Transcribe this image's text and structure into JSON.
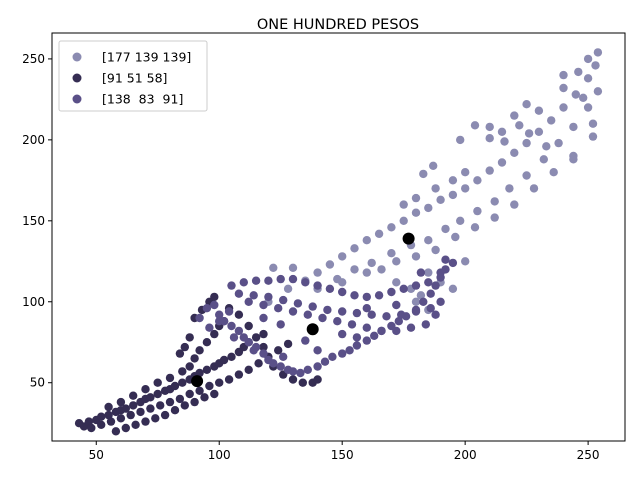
{
  "chart_data": {
    "type": "scatter",
    "title": "ONE HUNDRED PESOS",
    "xlabel": "",
    "ylabel": "",
    "xlim": [
      32,
      265
    ],
    "ylim": [
      14,
      266
    ],
    "xticks": [
      50,
      100,
      150,
      200,
      250
    ],
    "yticks": [
      50,
      100,
      150,
      200,
      250
    ],
    "grid": false,
    "legend_position": "top-left",
    "series": [
      {
        "name": "[177 139 139]",
        "color": "#8b8bb1",
        "centroid": [
          177,
          139
        ],
        "points": [
          [
            120,
            100
          ],
          [
            128,
            108
          ],
          [
            135,
            113
          ],
          [
            140,
            118
          ],
          [
            145,
            123
          ],
          [
            150,
            128
          ],
          [
            155,
            133
          ],
          [
            160,
            138
          ],
          [
            165,
            142
          ],
          [
            170,
            146
          ],
          [
            175,
            150
          ],
          [
            180,
            155
          ],
          [
            185,
            158
          ],
          [
            190,
            163
          ],
          [
            195,
            166
          ],
          [
            200,
            170
          ],
          [
            205,
            175
          ],
          [
            210,
            181
          ],
          [
            215,
            186
          ],
          [
            220,
            192
          ],
          [
            225,
            198
          ],
          [
            230,
            205
          ],
          [
            235,
            212
          ],
          [
            240,
            220
          ],
          [
            245,
            228
          ],
          [
            250,
            238
          ],
          [
            253,
            246
          ],
          [
            254,
            254
          ],
          [
            140,
            108
          ],
          [
            148,
            114
          ],
          [
            155,
            120
          ],
          [
            162,
            124
          ],
          [
            170,
            130
          ],
          [
            178,
            135
          ],
          [
            185,
            138
          ],
          [
            192,
            145
          ],
          [
            198,
            150
          ],
          [
            205,
            156
          ],
          [
            212,
            162
          ],
          [
            218,
            170
          ],
          [
            225,
            178
          ],
          [
            232,
            188
          ],
          [
            238,
            198
          ],
          [
            244,
            208
          ],
          [
            250,
            220
          ],
          [
            254,
            230
          ],
          [
            150,
            112
          ],
          [
            160,
            118
          ],
          [
            172,
            125
          ],
          [
            180,
            128
          ],
          [
            188,
            132
          ],
          [
            196,
            140
          ],
          [
            204,
            146
          ],
          [
            212,
            152
          ],
          [
            220,
            160
          ],
          [
            228,
            170
          ],
          [
            236,
            180
          ],
          [
            244,
            190
          ],
          [
            252,
            202
          ],
          [
            175,
            160
          ],
          [
            180,
            164
          ],
          [
            188,
            170
          ],
          [
            195,
            175
          ],
          [
            200,
            180
          ],
          [
            185,
            118
          ],
          [
            190,
            112
          ],
          [
            195,
            108
          ],
          [
            180,
            100
          ],
          [
            185,
            95
          ],
          [
            200,
            125
          ],
          [
            210,
            201
          ],
          [
            215,
            205
          ],
          [
            220,
            215
          ],
          [
            225,
            222
          ],
          [
            230,
            218
          ],
          [
            240,
            232
          ],
          [
            246,
            242
          ],
          [
            250,
            250
          ],
          [
            183,
            179
          ],
          [
            187,
            184
          ],
          [
            210,
            208
          ],
          [
            204,
            209
          ],
          [
            198,
            200
          ],
          [
            216,
            199
          ],
          [
            222,
            209
          ],
          [
            226,
            204
          ],
          [
            233,
            196
          ],
          [
            244,
            188
          ],
          [
            252,
            210
          ],
          [
            248,
            226
          ],
          [
            240,
            240
          ],
          [
            122,
            121
          ],
          [
            130,
            121
          ],
          [
            166,
            120
          ],
          [
            172,
            112
          ],
          [
            178,
            108
          ],
          [
            182,
            104
          ]
        ]
      },
      {
        "name": "[91 51 58]",
        "color": "#352d53",
        "centroid": [
          91,
          51
        ],
        "points": [
          [
            43,
            25
          ],
          [
            45,
            23
          ],
          [
            47,
            26
          ],
          [
            50,
            27
          ],
          [
            52,
            29
          ],
          [
            55,
            30
          ],
          [
            58,
            32
          ],
          [
            60,
            33
          ],
          [
            62,
            34
          ],
          [
            65,
            36
          ],
          [
            68,
            38
          ],
          [
            70,
            40
          ],
          [
            72,
            41
          ],
          [
            75,
            43
          ],
          [
            78,
            45
          ],
          [
            80,
            46
          ],
          [
            82,
            48
          ],
          [
            85,
            50
          ],
          [
            88,
            52
          ],
          [
            90,
            54
          ],
          [
            92,
            56
          ],
          [
            95,
            58
          ],
          [
            98,
            60
          ],
          [
            100,
            62
          ],
          [
            102,
            64
          ],
          [
            105,
            66
          ],
          [
            108,
            69
          ],
          [
            110,
            72
          ],
          [
            112,
            75
          ],
          [
            115,
            78
          ],
          [
            118,
            80
          ],
          [
            48,
            22
          ],
          [
            52,
            24
          ],
          [
            56,
            26
          ],
          [
            60,
            28
          ],
          [
            64,
            30
          ],
          [
            68,
            32
          ],
          [
            72,
            34
          ],
          [
            76,
            36
          ],
          [
            80,
            38
          ],
          [
            84,
            40
          ],
          [
            88,
            43
          ],
          [
            92,
            45
          ],
          [
            96,
            48
          ],
          [
            100,
            50
          ],
          [
            104,
            52
          ],
          [
            108,
            55
          ],
          [
            112,
            58
          ],
          [
            116,
            62
          ],
          [
            120,
            66
          ],
          [
            124,
            70
          ],
          [
            128,
            74
          ],
          [
            55,
            35
          ],
          [
            60,
            38
          ],
          [
            65,
            42
          ],
          [
            70,
            46
          ],
          [
            75,
            50
          ],
          [
            80,
            53
          ],
          [
            85,
            57
          ],
          [
            88,
            60
          ],
          [
            90,
            65
          ],
          [
            92,
            70
          ],
          [
            95,
            75
          ],
          [
            98,
            80
          ],
          [
            100,
            85
          ],
          [
            102,
            88
          ],
          [
            88,
            78
          ],
          [
            86,
            72
          ],
          [
            84,
            68
          ],
          [
            90,
            90
          ],
          [
            93,
            95
          ],
          [
            96,
            100
          ],
          [
            98,
            103
          ],
          [
            104,
            96
          ],
          [
            108,
            92
          ],
          [
            112,
            85
          ],
          [
            118,
            72
          ],
          [
            122,
            60
          ],
          [
            126,
            55
          ],
          [
            130,
            52
          ],
          [
            134,
            50
          ],
          [
            138,
            50
          ],
          [
            140,
            52
          ],
          [
            58,
            20
          ],
          [
            62,
            22
          ],
          [
            66,
            24
          ],
          [
            70,
            26
          ],
          [
            74,
            28
          ],
          [
            78,
            30
          ],
          [
            82,
            33
          ],
          [
            86,
            36
          ],
          [
            90,
            38
          ],
          [
            94,
            41
          ],
          [
            98,
            43
          ]
        ]
      },
      {
        "name": "[138  83  91]",
        "color": "#5a5088",
        "centroid": [
          138,
          83
        ],
        "points": [
          [
            92,
            90
          ],
          [
            95,
            96
          ],
          [
            98,
            98
          ],
          [
            100,
            92
          ],
          [
            102,
            88
          ],
          [
            105,
            85
          ],
          [
            108,
            82
          ],
          [
            110,
            78
          ],
          [
            112,
            75
          ],
          [
            115,
            72
          ],
          [
            118,
            68
          ],
          [
            120,
            64
          ],
          [
            122,
            62
          ],
          [
            125,
            60
          ],
          [
            128,
            58
          ],
          [
            130,
            57
          ],
          [
            133,
            56
          ],
          [
            136,
            58
          ],
          [
            140,
            60
          ],
          [
            143,
            63
          ],
          [
            146,
            66
          ],
          [
            150,
            68
          ],
          [
            153,
            70
          ],
          [
            156,
            73
          ],
          [
            160,
            76
          ],
          [
            163,
            79
          ],
          [
            166,
            82
          ],
          [
            170,
            85
          ],
          [
            173,
            88
          ],
          [
            176,
            91
          ],
          [
            180,
            95
          ],
          [
            183,
            100
          ],
          [
            186,
            105
          ],
          [
            188,
            110
          ],
          [
            190,
            115
          ],
          [
            192,
            120
          ],
          [
            105,
            110
          ],
          [
            110,
            112
          ],
          [
            115,
            113
          ],
          [
            120,
            113
          ],
          [
            125,
            114
          ],
          [
            130,
            114
          ],
          [
            135,
            112
          ],
          [
            140,
            110
          ],
          [
            145,
            108
          ],
          [
            150,
            106
          ],
          [
            155,
            104
          ],
          [
            160,
            103
          ],
          [
            165,
            104
          ],
          [
            170,
            106
          ],
          [
            175,
            108
          ],
          [
            180,
            110
          ],
          [
            185,
            112
          ],
          [
            190,
            118
          ],
          [
            195,
            124
          ],
          [
            112,
            100
          ],
          [
            118,
            98
          ],
          [
            124,
            96
          ],
          [
            130,
            94
          ],
          [
            136,
            92
          ],
          [
            142,
            90
          ],
          [
            148,
            88
          ],
          [
            154,
            86
          ],
          [
            160,
            84
          ],
          [
            166,
            82
          ],
          [
            172,
            82
          ],
          [
            178,
            84
          ],
          [
            184,
            86
          ],
          [
            188,
            92
          ],
          [
            108,
            105
          ],
          [
            114,
            104
          ],
          [
            120,
            103
          ],
          [
            126,
            101
          ],
          [
            132,
            99
          ],
          [
            138,
            97
          ],
          [
            144,
            95
          ],
          [
            150,
            94
          ],
          [
            156,
            93
          ],
          [
            162,
            92
          ],
          [
            168,
            91
          ],
          [
            174,
            92
          ],
          [
            180,
            94
          ],
          [
            186,
            96
          ],
          [
            190,
            100
          ],
          [
            100,
            88
          ],
          [
            104,
            94
          ],
          [
            96,
            84
          ],
          [
            106,
            78
          ],
          [
            114,
            70
          ],
          [
            126,
            66
          ],
          [
            140,
            70
          ],
          [
            156,
            78
          ],
          [
            172,
            98
          ],
          [
            182,
            118
          ],
          [
            192,
            126
          ],
          [
            160,
            96
          ],
          [
            150,
            80
          ],
          [
            135,
            76
          ],
          [
            125,
            86
          ],
          [
            118,
            90
          ]
        ]
      }
    ]
  }
}
